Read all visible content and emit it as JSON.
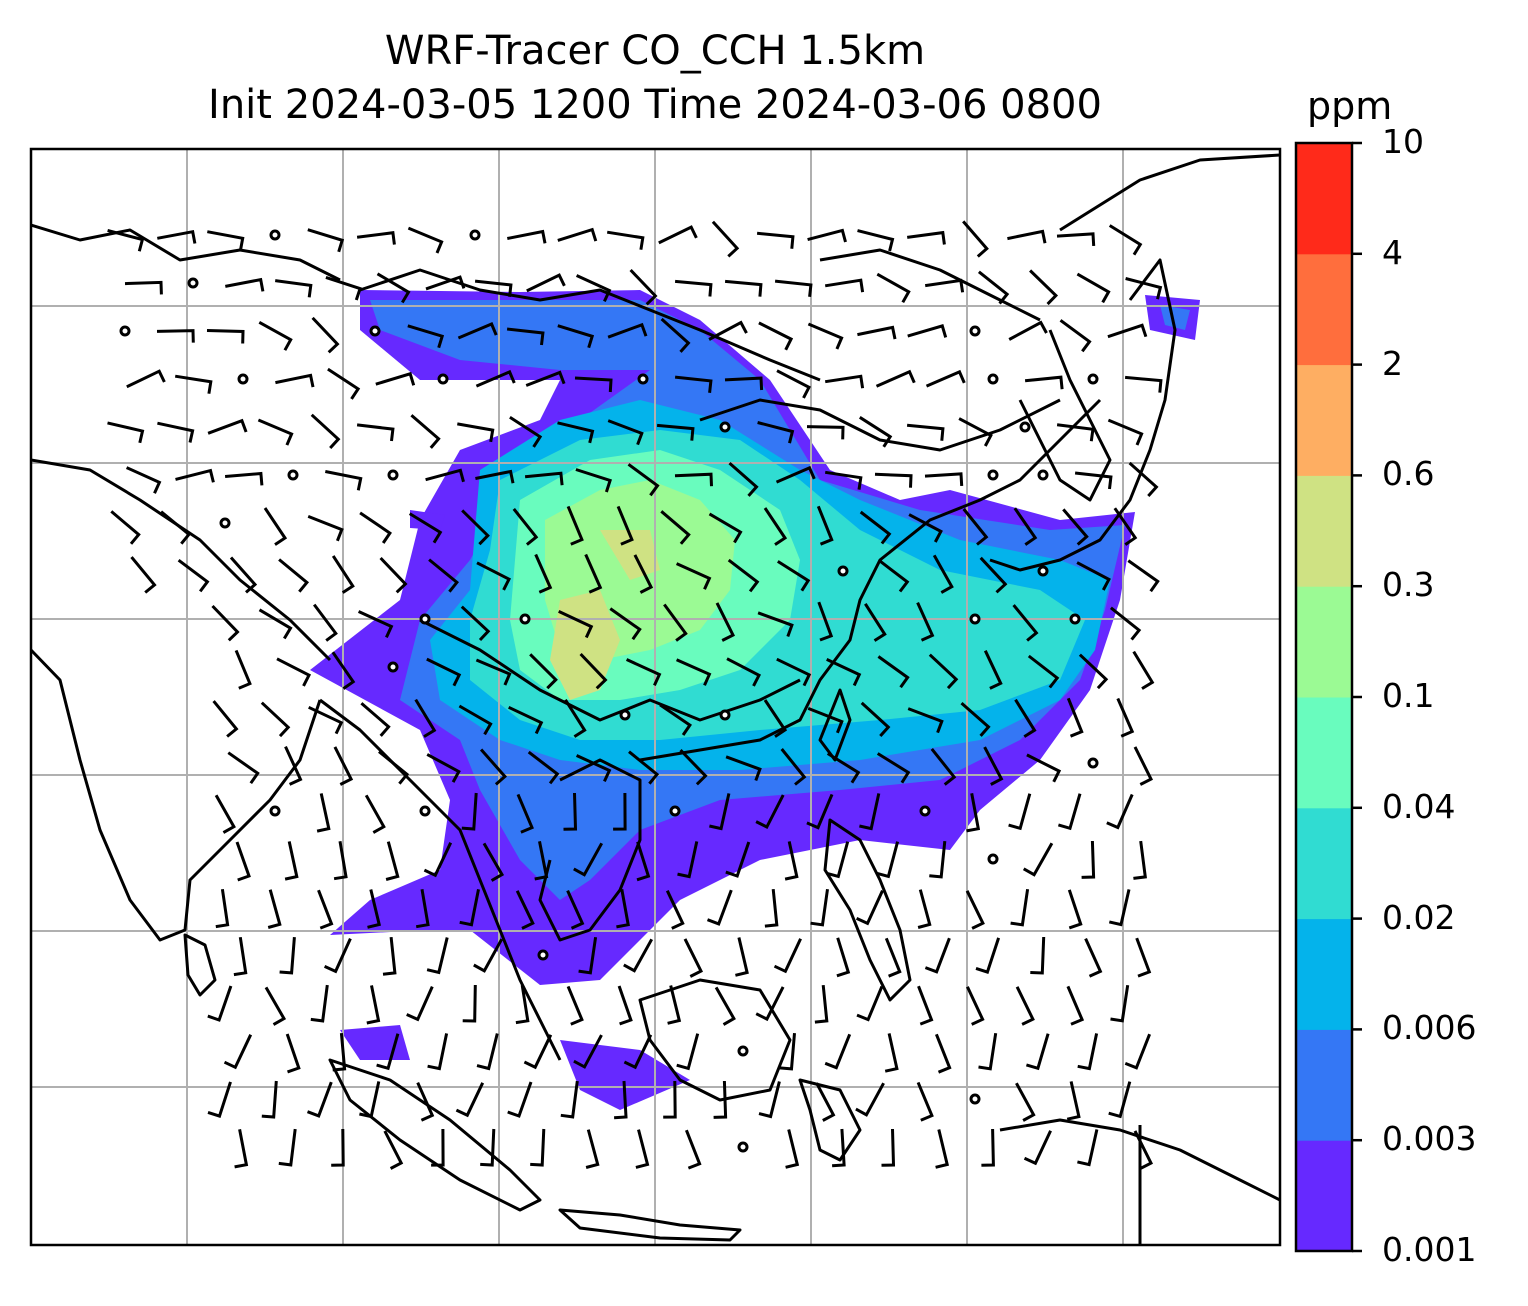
{
  "chart_data": {
    "type": "heatmap",
    "title_line_1": "WRF-Tracer CO_CCH 1.5km",
    "title_line_2": "Init 2024-03-05 1200 Time 2024-03-06 0800",
    "colorbar": {
      "unit": "ppm",
      "levels": [
        "0.001",
        "0.003",
        "0.006",
        "0.02",
        "0.04",
        "0.1",
        "0.3",
        "0.6",
        "2",
        "4",
        "10"
      ],
      "colors": [
        "#6629ff",
        "#3477f5",
        "#04b3eb",
        "#30dcd2",
        "#69fcbe",
        "#9bfa94",
        "#cfe283",
        "#feae62",
        "#ff6e3d",
        "#ff2a1a"
      ]
    },
    "grid": true,
    "overlays": [
      "filled concentration contours",
      "wind barbs",
      "coastlines",
      "calm wind markers"
    ]
  },
  "colors": {
    "frame": "#000000",
    "grid": "#b0b0b0",
    "coastline": "#000000"
  }
}
